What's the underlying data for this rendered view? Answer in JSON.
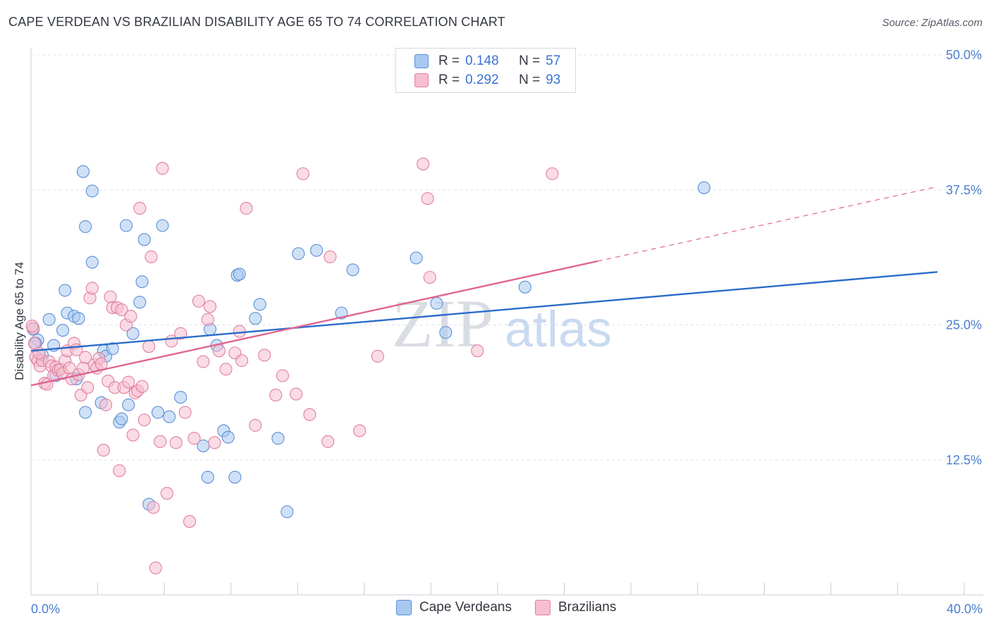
{
  "header": {
    "title": "CAPE VERDEAN VS BRAZILIAN DISABILITY AGE 65 TO 74 CORRELATION CHART",
    "source": "Source: ZipAtlas.com"
  },
  "legend": {
    "series1": {
      "r_label": "R =",
      "r_value": "0.148",
      "n_label": "N =",
      "n_value": "57"
    },
    "series2": {
      "r_label": "R =",
      "r_value": "0.292",
      "n_label": "N =",
      "n_value": "93"
    }
  },
  "bottom_legend": {
    "series1": "Cape Verdeans",
    "series2": "Brazilians"
  },
  "watermark": {
    "zip": "ZIP",
    "atlas": "atlas"
  },
  "colors": {
    "blue_fill": "#a9c8f0",
    "blue_stroke": "#5b8fd6",
    "blue_line": "#2b6cc9",
    "pink_fill": "#f6bfd0",
    "pink_stroke": "#e07fa0",
    "pink_line": "#e0648f",
    "grid": "#dfe3e8",
    "tick_text": "#4a7fd0"
  },
  "chart_data": {
    "type": "scatter",
    "title": "CAPE VERDEAN VS BRAZILIAN DISABILITY AGE 65 TO 74 CORRELATION CHART",
    "xlabel": "",
    "ylabel": "Disability Age 65 to 74",
    "xlim": [
      0,
      40
    ],
    "ylim": [
      0,
      50
    ],
    "x_tick_labels": [
      "0.0%",
      "40.0%"
    ],
    "y_ticks": [
      12.5,
      25.0,
      37.5,
      50.0
    ],
    "y_tick_labels": [
      "12.5%",
      "25.0%",
      "37.5%",
      "50.0%"
    ],
    "series": [
      {
        "name": "Cape Verdeans",
        "r": 0.148,
        "n": 57,
        "trend": {
          "x": [
            0,
            40
          ],
          "y": [
            22.6,
            29.9
          ],
          "dashed_from": null
        },
        "points": [
          [
            0.1,
            24.6
          ],
          [
            0.3,
            23.6
          ],
          [
            0.5,
            22.2
          ],
          [
            0.8,
            25.5
          ],
          [
            1.0,
            23.1
          ],
          [
            1.1,
            20.3
          ],
          [
            1.4,
            24.5
          ],
          [
            1.5,
            28.2
          ],
          [
            1.6,
            26.1
          ],
          [
            1.9,
            25.8
          ],
          [
            2.0,
            20.0
          ],
          [
            2.1,
            25.6
          ],
          [
            2.3,
            39.2
          ],
          [
            2.4,
            34.1
          ],
          [
            2.4,
            16.9
          ],
          [
            2.7,
            37.4
          ],
          [
            2.7,
            30.8
          ],
          [
            3.1,
            17.8
          ],
          [
            3.2,
            22.6
          ],
          [
            3.3,
            22.1
          ],
          [
            3.6,
            22.8
          ],
          [
            3.9,
            16.0
          ],
          [
            4.0,
            16.3
          ],
          [
            4.2,
            34.2
          ],
          [
            4.3,
            17.6
          ],
          [
            4.5,
            24.2
          ],
          [
            4.8,
            27.1
          ],
          [
            4.9,
            29.0
          ],
          [
            5.0,
            32.9
          ],
          [
            5.2,
            8.4
          ],
          [
            5.6,
            16.9
          ],
          [
            5.8,
            34.2
          ],
          [
            6.1,
            16.5
          ],
          [
            6.6,
            18.3
          ],
          [
            7.6,
            13.8
          ],
          [
            7.8,
            10.9
          ],
          [
            7.9,
            24.6
          ],
          [
            8.2,
            23.1
          ],
          [
            8.5,
            15.2
          ],
          [
            8.7,
            14.6
          ],
          [
            9.0,
            10.9
          ],
          [
            9.1,
            29.6
          ],
          [
            9.2,
            29.7
          ],
          [
            9.9,
            25.6
          ],
          [
            10.1,
            26.9
          ],
          [
            10.9,
            14.5
          ],
          [
            11.3,
            7.7
          ],
          [
            11.8,
            31.6
          ],
          [
            12.6,
            31.9
          ],
          [
            13.7,
            26.1
          ],
          [
            14.2,
            30.1
          ],
          [
            17.0,
            31.2
          ],
          [
            17.9,
            27.0
          ],
          [
            18.3,
            24.3
          ],
          [
            21.8,
            28.5
          ],
          [
            29.7,
            37.7
          ],
          [
            0.2,
            23.3
          ]
        ]
      },
      {
        "name": "Brazilians",
        "r": 0.292,
        "n": 93,
        "trend": {
          "x": [
            0,
            40
          ],
          "y": [
            19.4,
            37.8
          ],
          "dashed_from": 25
        },
        "points": [
          [
            0.1,
            24.7
          ],
          [
            0.2,
            22.0
          ],
          [
            0.3,
            21.7
          ],
          [
            0.4,
            21.2
          ],
          [
            0.5,
            21.7
          ],
          [
            0.6,
            19.6
          ],
          [
            0.7,
            19.5
          ],
          [
            0.8,
            21.6
          ],
          [
            0.9,
            21.2
          ],
          [
            1.0,
            20.3
          ],
          [
            1.1,
            21.1
          ],
          [
            1.2,
            20.8
          ],
          [
            1.3,
            20.9
          ],
          [
            1.4,
            20.5
          ],
          [
            1.5,
            21.7
          ],
          [
            1.6,
            22.6
          ],
          [
            1.7,
            21.0
          ],
          [
            1.8,
            20.0
          ],
          [
            1.9,
            23.3
          ],
          [
            2.0,
            22.7
          ],
          [
            2.1,
            20.4
          ],
          [
            2.2,
            18.5
          ],
          [
            2.3,
            21.0
          ],
          [
            2.4,
            22.0
          ],
          [
            2.5,
            19.2
          ],
          [
            2.6,
            27.5
          ],
          [
            2.7,
            28.4
          ],
          [
            2.8,
            21.3
          ],
          [
            2.9,
            21.0
          ],
          [
            3.0,
            21.9
          ],
          [
            3.1,
            21.4
          ],
          [
            3.2,
            13.4
          ],
          [
            3.3,
            17.6
          ],
          [
            3.4,
            19.8
          ],
          [
            3.5,
            27.6
          ],
          [
            3.6,
            26.6
          ],
          [
            3.7,
            19.2
          ],
          [
            3.8,
            26.6
          ],
          [
            3.9,
            11.5
          ],
          [
            4.0,
            26.4
          ],
          [
            4.1,
            19.2
          ],
          [
            4.2,
            25.0
          ],
          [
            4.3,
            19.7
          ],
          [
            4.4,
            25.8
          ],
          [
            4.5,
            14.8
          ],
          [
            4.6,
            18.7
          ],
          [
            4.7,
            18.9
          ],
          [
            4.8,
            35.8
          ],
          [
            4.9,
            19.3
          ],
          [
            5.0,
            16.2
          ],
          [
            5.2,
            23.0
          ],
          [
            5.3,
            31.3
          ],
          [
            5.4,
            8.1
          ],
          [
            5.5,
            2.5
          ],
          [
            5.7,
            14.2
          ],
          [
            5.8,
            39.5
          ],
          [
            6.0,
            9.4
          ],
          [
            6.2,
            23.5
          ],
          [
            6.4,
            14.1
          ],
          [
            6.6,
            24.2
          ],
          [
            6.8,
            16.9
          ],
          [
            7.0,
            6.8
          ],
          [
            7.2,
            14.5
          ],
          [
            7.4,
            27.2
          ],
          [
            7.6,
            21.6
          ],
          [
            7.8,
            25.5
          ],
          [
            7.9,
            26.7
          ],
          [
            8.1,
            14.1
          ],
          [
            8.3,
            22.6
          ],
          [
            8.6,
            20.9
          ],
          [
            9.0,
            22.4
          ],
          [
            9.2,
            24.4
          ],
          [
            9.3,
            21.7
          ],
          [
            9.5,
            35.8
          ],
          [
            9.9,
            15.7
          ],
          [
            10.3,
            22.2
          ],
          [
            10.8,
            18.5
          ],
          [
            11.1,
            20.3
          ],
          [
            11.7,
            18.6
          ],
          [
            12.0,
            39.0
          ],
          [
            12.3,
            16.7
          ],
          [
            13.1,
            14.2
          ],
          [
            13.2,
            31.3
          ],
          [
            14.5,
            15.2
          ],
          [
            15.3,
            22.1
          ],
          [
            17.3,
            39.9
          ],
          [
            17.5,
            36.7
          ],
          [
            17.6,
            29.4
          ],
          [
            19.7,
            22.6
          ],
          [
            23.0,
            39.0
          ],
          [
            0.05,
            24.9
          ],
          [
            0.15,
            23.3
          ],
          [
            0.35,
            22.4
          ]
        ]
      }
    ]
  }
}
